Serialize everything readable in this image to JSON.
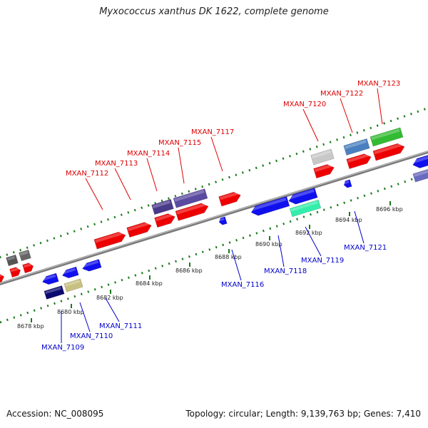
{
  "title": "Myxococcus xanthus DK 1622, complete genome",
  "footer": {
    "accession": "Accession: NC_008095",
    "summary": "Topology: circular; Length: 9,139,763 bp; Genes: 7,410"
  },
  "colors": {
    "top_label": "#dd0000",
    "bottom_label": "#0000cc",
    "backbone": "#888888",
    "tick": "#1a7a1a"
  },
  "ticks": [
    {
      "label": "8678 kbp"
    },
    {
      "label": "8680 kbp"
    },
    {
      "label": "8682 kbp"
    },
    {
      "label": "8684 kbp"
    },
    {
      "label": "8686 kbp"
    },
    {
      "label": "8688 kbp"
    },
    {
      "label": "8690 kbp"
    },
    {
      "label": "8692 kbp"
    },
    {
      "label": "8694 kbp"
    },
    {
      "label": "8696 kbp"
    }
  ],
  "top_genes": [
    {
      "name": "MXAN_7112"
    },
    {
      "name": "MXAN_7113"
    },
    {
      "name": "MXAN_7114"
    },
    {
      "name": "MXAN_7115"
    },
    {
      "name": "MXAN_7117"
    },
    {
      "name": "MXAN_7120"
    },
    {
      "name": "MXAN_7122"
    },
    {
      "name": "MXAN_7123"
    }
  ],
  "bottom_genes": [
    {
      "name": "MXAN_7109"
    },
    {
      "name": "MXAN_7110"
    },
    {
      "name": "MXAN_7111"
    },
    {
      "name": "MXAN_7116"
    },
    {
      "name": "MXAN_7118"
    },
    {
      "name": "MXAN_7119"
    },
    {
      "name": "MXAN_7121"
    }
  ]
}
